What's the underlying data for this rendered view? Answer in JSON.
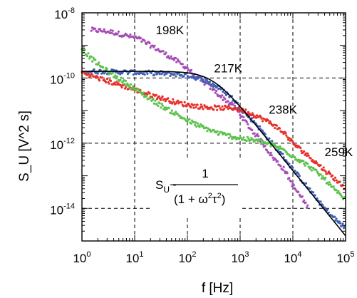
{
  "chart_data": {
    "type": "scatter",
    "title": "",
    "xlabel": "f  [Hz]",
    "ylabel": "S_U  [V^2 s]",
    "x_scale": "log",
    "y_scale": "log",
    "xlim": [
      1,
      100000
    ],
    "ylim": [
      1e-15,
      1e-08
    ],
    "grid": true,
    "x_ticks": [
      {
        "base": "10",
        "exp": "0",
        "value": 1
      },
      {
        "base": "10",
        "exp": "1",
        "value": 10
      },
      {
        "base": "10",
        "exp": "2",
        "value": 100
      },
      {
        "base": "10",
        "exp": "3",
        "value": 1000
      },
      {
        "base": "10",
        "exp": "4",
        "value": 10000
      },
      {
        "base": "10",
        "exp": "5",
        "value": 100000
      }
    ],
    "y_ticks": [
      {
        "base": "10",
        "exp": "-8",
        "value": 1e-08
      },
      {
        "base": "10",
        "exp": "-10",
        "value": 1e-10
      },
      {
        "base": "10",
        "exp": "-12",
        "value": 1e-12
      },
      {
        "base": "10",
        "exp": "-14",
        "value": 1e-14
      }
    ],
    "series": [
      {
        "name": "198K",
        "color": "#a64db5",
        "points": [
          [
            1.5,
            3e-09
          ],
          [
            2.5,
            2.8e-09
          ],
          [
            4,
            2.5e-09
          ],
          [
            7,
            2e-09
          ],
          [
            12,
            1.6e-09
          ],
          [
            20,
            1e-09
          ],
          [
            35,
            6e-10
          ],
          [
            60,
            3.5e-10
          ],
          [
            100,
            2e-10
          ],
          [
            150,
            1e-10
          ],
          [
            250,
            6e-11
          ],
          [
            400,
            3e-11
          ],
          [
            700,
            1.5e-11
          ],
          [
            1000,
            8e-12
          ],
          [
            1500,
            3e-12
          ],
          [
            2500,
            1.2e-12
          ],
          [
            4000,
            4e-13
          ],
          [
            7000,
            1.5e-13
          ],
          [
            10000,
            5e-14
          ],
          [
            15000,
            2e-14
          ],
          [
            20000,
            1e-14
          ]
        ]
      },
      {
        "name": "217K",
        "color": "#3f5fb5",
        "points": [
          [
            1.2,
            1.6e-10
          ],
          [
            2,
            1.6e-10
          ],
          [
            4,
            1.55e-10
          ],
          [
            8,
            1.5e-10
          ],
          [
            15,
            1.45e-10
          ],
          [
            30,
            1.4e-10
          ],
          [
            60,
            1.3e-10
          ],
          [
            100,
            1.2e-10
          ],
          [
            200,
            9e-11
          ],
          [
            400,
            5e-11
          ],
          [
            700,
            2.5e-11
          ],
          [
            1000,
            1.2e-11
          ],
          [
            2000,
            4e-12
          ],
          [
            4000,
            1e-12
          ],
          [
            7000,
            3.5e-13
          ],
          [
            10000,
            1.6e-13
          ],
          [
            20000,
            4e-14
          ],
          [
            40000,
            1e-14
          ],
          [
            70000,
            4e-15
          ],
          [
            100000,
            2.5e-15
          ]
        ]
      },
      {
        "name": "238K",
        "color": "#e8302a",
        "points": [
          [
            1,
            1.5e-10
          ],
          [
            2,
            1e-10
          ],
          [
            4,
            7e-11
          ],
          [
            8,
            5e-11
          ],
          [
            15,
            3.5e-11
          ],
          [
            30,
            2.5e-11
          ],
          [
            60,
            1.8e-11
          ],
          [
            100,
            1.5e-11
          ],
          [
            200,
            1.3e-11
          ],
          [
            400,
            1.2e-11
          ],
          [
            700,
            1.2e-11
          ],
          [
            1000,
            1.1e-11
          ],
          [
            2000,
            7e-12
          ],
          [
            4000,
            4e-12
          ],
          [
            7000,
            2e-12
          ],
          [
            10000,
            1e-12
          ],
          [
            20000,
            4e-13
          ],
          [
            40000,
            1.5e-13
          ],
          [
            70000,
            7e-14
          ],
          [
            100000,
            4e-14
          ]
        ]
      },
      {
        "name": "259K",
        "color": "#5cc24d",
        "points": [
          [
            1,
            8e-10
          ],
          [
            1.5,
            4e-10
          ],
          [
            2.5,
            2e-10
          ],
          [
            4,
            1.2e-10
          ],
          [
            8,
            6e-11
          ],
          [
            15,
            3e-11
          ],
          [
            30,
            1.5e-11
          ],
          [
            60,
            8e-12
          ],
          [
            100,
            5e-12
          ],
          [
            200,
            3e-12
          ],
          [
            400,
            2e-12
          ],
          [
            700,
            1.6e-12
          ],
          [
            1000,
            1.4e-12
          ],
          [
            2000,
            1.2e-12
          ],
          [
            4000,
            9e-13
          ],
          [
            7000,
            6e-13
          ],
          [
            10000,
            4e-13
          ],
          [
            20000,
            2e-13
          ],
          [
            40000,
            8e-14
          ],
          [
            70000,
            3e-14
          ],
          [
            100000,
            1.8e-14
          ]
        ]
      }
    ],
    "fit_curve": {
      "color": "#000000",
      "plateau": 1.6e-10,
      "corner_hz": 300
    },
    "series_labels": [
      {
        "text": "198K",
        "x": 25,
        "y": 2.2e-09
      },
      {
        "text": "217K",
        "x": 320,
        "y": 1.5e-10
      },
      {
        "text": "238K",
        "x": 3500,
        "y": 8e-12
      },
      {
        "text": "259K",
        "x": 40000,
        "y": 4e-13
      }
    ],
    "annotation": {
      "lhs_base": "S",
      "lhs_sub": "U",
      "tilde": "~",
      "numerator": "1",
      "denominator": "(1 + ω2τ2)",
      "den_part1": "(1 + ω",
      "den_sup1": "2",
      "den_part2": "τ",
      "den_sup2": "2",
      "den_part3": ")"
    }
  }
}
